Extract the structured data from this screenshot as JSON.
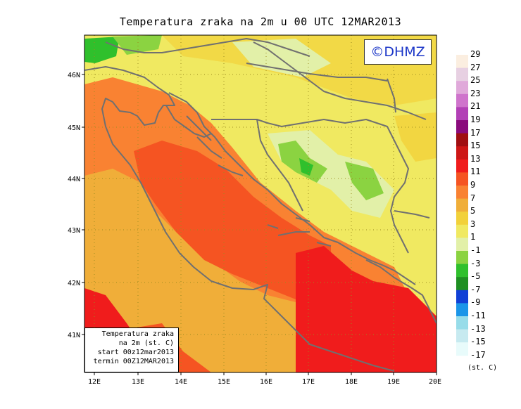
{
  "title": "Temperatura zraka na 2m u 00 UTC 12MAR2013",
  "copyright": "©DHMZ",
  "info_box": {
    "line1": "Temperatura zraka",
    "line2": "na 2m (st. C)",
    "line3": "start 00z12mar2013",
    "line4": "termin 00Z12MAR2013"
  },
  "legend": {
    "unit": "(st. C)",
    "labels": [
      "29",
      "27",
      "25",
      "23",
      "21",
      "19",
      "17",
      "15",
      "13",
      "11",
      "9",
      "7",
      "5",
      "3",
      "1",
      "-1",
      "-3",
      "-5",
      "-7",
      "-9",
      "-11",
      "-13",
      "-15",
      "-17"
    ],
    "colors": [
      "#fbeee0",
      "#e7d0e2",
      "#e0a9da",
      "#cf74cc",
      "#b240b6",
      "#8a0b7c",
      "#a00f12",
      "#cd1716",
      "#f01c1c",
      "#f55422",
      "#f98232",
      "#f0ae39",
      "#f2d13a",
      "#f0e961",
      "#e2f0a8",
      "#8bd341",
      "#2fc02c",
      "#1f8f22",
      "#1140d6",
      "#1b95e8",
      "#97dce9",
      "#c7eaf0",
      "#e8fbfb"
    ]
  },
  "axes": {
    "x_ticks": [
      "12E",
      "13E",
      "14E",
      "15E",
      "16E",
      "17E",
      "18E",
      "19E",
      "20E"
    ],
    "y_ticks": [
      "46N",
      "45N",
      "44N",
      "43N",
      "42N",
      "41N"
    ]
  },
  "colors": {
    "coast": "#707070",
    "grid": "#9a8c20"
  }
}
